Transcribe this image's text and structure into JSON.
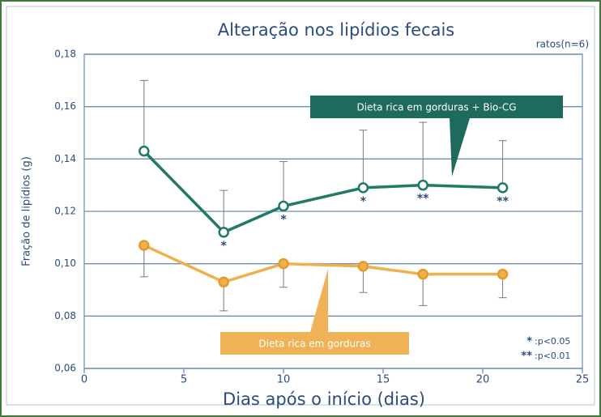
{
  "chart_data": {
    "type": "line",
    "title": "Alteração nos lipídios fecais",
    "subtitle": "ratos(n=6)",
    "x_label": "Dias após o início (dias)",
    "y_label": "Fração de lipídios (g)",
    "x": [
      3,
      7,
      10,
      14,
      17,
      21
    ],
    "series": [
      {
        "name": "Dieta rica em gorduras + Bio-CG",
        "color": "#1f7a66",
        "error_direction": "up",
        "values": [
          0.143,
          0.112,
          0.122,
          0.129,
          0.13,
          0.129
        ],
        "errors": [
          0.027,
          0.016,
          0.017,
          0.022,
          0.024,
          0.018
        ],
        "significance": [
          null,
          "*",
          "*",
          "*",
          "**",
          "**"
        ]
      },
      {
        "name": "Dieta rica em gorduras",
        "color": "#f0b04c",
        "error_direction": "down",
        "values": [
          0.107,
          0.093,
          0.1,
          0.099,
          0.096,
          0.096
        ],
        "errors": [
          0.012,
          0.011,
          0.009,
          0.01,
          0.012,
          0.009
        ]
      }
    ],
    "xlim": [
      0,
      25
    ],
    "xticks": [
      0,
      5,
      10,
      15,
      20,
      25
    ],
    "ylim": [
      0.06,
      0.18
    ],
    "yticks": [
      {
        "value": 0.06,
        "label": "0,06"
      },
      {
        "value": 0.08,
        "label": "0,08"
      },
      {
        "value": 0.1,
        "label": "0,10"
      },
      {
        "value": 0.12,
        "label": "0,12"
      },
      {
        "value": 0.14,
        "label": "0,14"
      },
      {
        "value": 0.16,
        "label": "0,16"
      },
      {
        "value": 0.18,
        "label": "0,18"
      }
    ],
    "grid": true,
    "notes": [
      {
        "symbol": "*",
        "text": ":p<0.05"
      },
      {
        "symbol": "**",
        "text": ":p<0.01"
      }
    ]
  }
}
